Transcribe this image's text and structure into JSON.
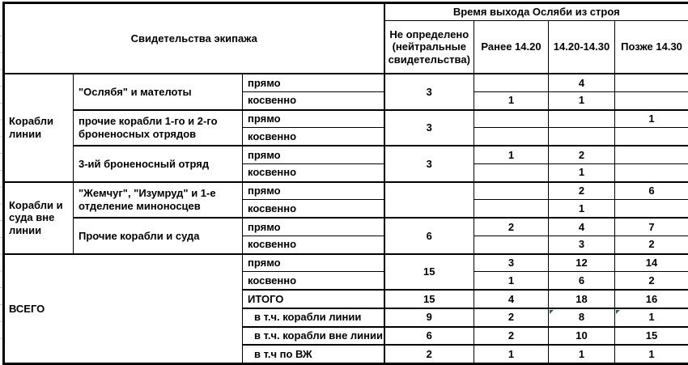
{
  "table_title": {
    "witnesses_header": "Свидетельства экипажа",
    "time_header": "Время выхода Осляби из строя"
  },
  "columns": {
    "undetermined": "Не определено (нейтральные свидетельства)",
    "before": "Ранее 14.20",
    "mid": "14.20-14.30",
    "after": "Позже 14.30"
  },
  "evidence_labels": {
    "direct": "прямо",
    "indirect": "косвенно"
  },
  "groups": [
    {
      "label": "Корабли линии",
      "blocks": [
        {
          "name": "\"Ослябя\" и мателоты",
          "undetermined": "3",
          "direct": {
            "before": "",
            "mid": "4",
            "after": ""
          },
          "indirect": {
            "before": "1",
            "mid": "1",
            "after": ""
          }
        },
        {
          "name": "прочие корабли 1-го и 2-го броненосных отрядов",
          "undetermined": "3",
          "direct": {
            "before": "",
            "mid": "",
            "after": "1"
          },
          "indirect": {
            "before": "",
            "mid": "",
            "after": ""
          }
        },
        {
          "name": "3-ий броненосный отряд",
          "undetermined": "3",
          "direct": {
            "before": "1",
            "mid": "2",
            "after": ""
          },
          "indirect": {
            "before": "",
            "mid": "1",
            "after": ""
          }
        }
      ]
    },
    {
      "label": "Корабли и суда вне линии",
      "blocks": [
        {
          "name": "\"Жемчуг\", \"Изумруд\" и 1-е отделение миноносцев",
          "undetermined": "",
          "direct": {
            "before": "",
            "mid": "2",
            "after": "6"
          },
          "indirect": {
            "before": "",
            "mid": "1",
            "after": ""
          }
        },
        {
          "name": "Прочие корабли и суда",
          "undetermined": "6",
          "direct": {
            "before": "2",
            "mid": "4",
            "after": "7"
          },
          "indirect": {
            "before": "",
            "mid": "3",
            "after": "2"
          }
        }
      ]
    }
  ],
  "total": {
    "label": "ВСЕГО",
    "undetermined": "15",
    "direct": {
      "before": "3",
      "mid": "12",
      "after": "14"
    },
    "indirect": {
      "before": "1",
      "mid": "6",
      "after": "2"
    },
    "summary": [
      {
        "label": "ИТОГО",
        "undetermined": "15",
        "before": "4",
        "mid": "18",
        "after": "16"
      },
      {
        "label": "в т.ч. корабли линии",
        "undetermined": "9",
        "before": "2",
        "mid": "8",
        "after": "1"
      },
      {
        "label": "в т.ч. корабли вне линии",
        "undetermined": "6",
        "before": "2",
        "mid": "10",
        "after": "15"
      },
      {
        "label": "в т.ч по ВЖ",
        "undetermined": "2",
        "before": "1",
        "mid": "1",
        "after": "1"
      }
    ]
  },
  "colors": {
    "error_flag": "#1e7145",
    "border": "#000000",
    "grid_stub": "#c9c9c9"
  }
}
